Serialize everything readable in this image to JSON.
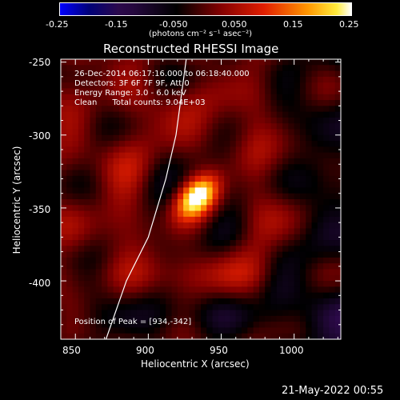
{
  "chart_data": {
    "type": "heatmap",
    "title": "Reconstructed RHESSI Image",
    "xlabel": "Heliocentric X (arcsec)",
    "ylabel": "Heliocentric Y (arcsec)",
    "xlim": [
      840,
      1032
    ],
    "ylim": [
      -440,
      -248
    ],
    "x_ticks": [
      850,
      900,
      950,
      1000
    ],
    "y_ticks": [
      -250,
      -300,
      -350,
      -400
    ],
    "colorbar": {
      "range": [
        -0.25,
        0.25
      ],
      "ticks": [
        "-0.25",
        "-0.15",
        "-0.050",
        "0.050",
        "0.15",
        "0.25"
      ],
      "label": "(photons cm⁻² s⁻¹ asec⁻²)"
    },
    "annotations": [
      "26-Dec-2014 06:17:16.000 to 06:18:40.000",
      "Detectors: 3F 6F 7F 9F, Att 0",
      "Energy Range: 3.0 - 6.0 keV",
      "Clean      Total counts: 9.04E+03",
      "Position of Peak = [934,-342]"
    ],
    "peak": {
      "x": 934,
      "y": -342
    },
    "limb_points": [
      [
        926,
        -248
      ],
      [
        919,
        -300
      ],
      [
        912,
        -330
      ],
      [
        900,
        -370
      ],
      [
        885,
        -400
      ],
      [
        871,
        -440
      ]
    ],
    "colors": {
      "background": "#000000",
      "text": "#ffffff"
    }
  },
  "footer": {
    "timestamp": "21-May-2022 00:55"
  }
}
